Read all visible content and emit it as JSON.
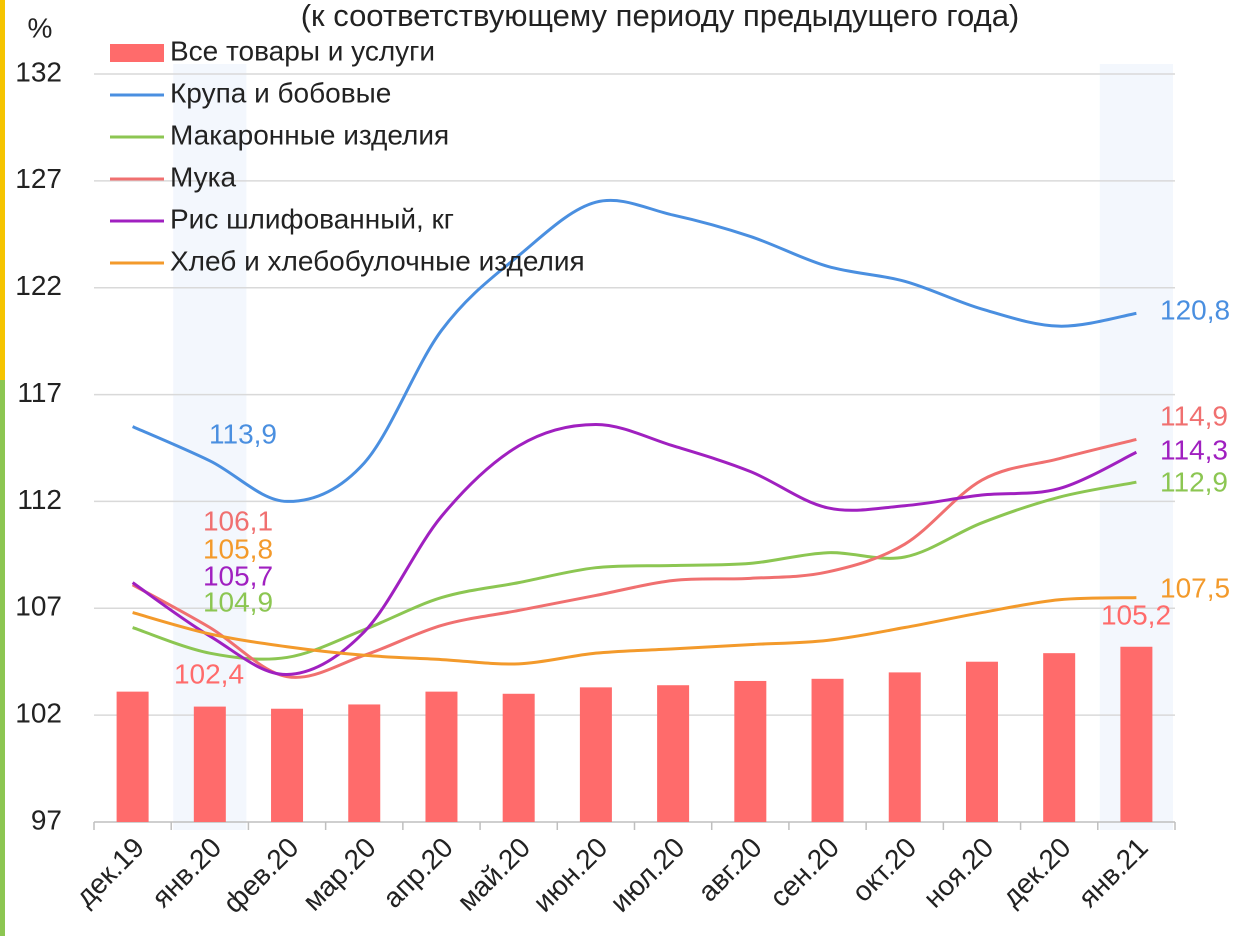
{
  "chart_data": {
    "type": "bar+line",
    "title": "(к соответствующему периоду предыдущего года)",
    "y_label": "%",
    "categories": [
      "дек.19",
      "янв.20",
      "фев.20",
      "мар.20",
      "апр.20",
      "май.20",
      "июн.20",
      "июл.20",
      "авг.20",
      "сен.20",
      "окт.20",
      "ноя.20",
      "дек.20",
      "янв.21"
    ],
    "ylim": [
      97,
      132
    ],
    "yticks": [
      97,
      102,
      107,
      112,
      117,
      122,
      127,
      132
    ],
    "grid": true,
    "legend": "top-left",
    "series": [
      {
        "name": "Все товары и услуги",
        "type": "bar",
        "color": "#ff6b6b",
        "values": [
          103.1,
          102.4,
          102.3,
          102.5,
          103.1,
          103.0,
          103.3,
          103.4,
          103.6,
          103.7,
          104.0,
          104.5,
          104.9,
          105.2
        ],
        "value_labels": [
          null,
          "102,4",
          null,
          null,
          null,
          null,
          null,
          null,
          null,
          null,
          null,
          null,
          null,
          "105,2"
        ]
      },
      {
        "name": "Крупа и бобовые",
        "type": "line",
        "color": "#4a8fe0",
        "values": [
          115.5,
          113.9,
          112.0,
          113.8,
          120.0,
          123.5,
          126.0,
          125.4,
          124.4,
          123.0,
          122.3,
          121.0,
          120.2,
          120.8
        ],
        "value_labels": [
          null,
          "113,9",
          null,
          null,
          null,
          null,
          null,
          null,
          null,
          null,
          null,
          null,
          null,
          "120,8"
        ]
      },
      {
        "name": "Макаронные изделия",
        "type": "line",
        "color": "#8cc652",
        "values": [
          106.1,
          104.9,
          104.7,
          106.0,
          107.5,
          108.2,
          108.9,
          109.0,
          109.1,
          109.6,
          109.4,
          111.0,
          112.2,
          112.9
        ],
        "value_labels": [
          null,
          "104,9",
          null,
          null,
          null,
          null,
          null,
          null,
          null,
          null,
          null,
          null,
          null,
          "112,9"
        ]
      },
      {
        "name": "Мука",
        "type": "line",
        "color": "#f07070",
        "values": [
          108.1,
          106.1,
          103.8,
          104.8,
          106.2,
          106.9,
          107.6,
          108.3,
          108.4,
          108.7,
          110.0,
          113.0,
          114.0,
          114.9
        ],
        "value_labels": [
          null,
          "106,1",
          null,
          null,
          null,
          null,
          null,
          null,
          null,
          null,
          null,
          null,
          null,
          "114,9"
        ]
      },
      {
        "name": "Рис шлифованный, кг",
        "type": "line",
        "color": "#a020c0",
        "values": [
          108.2,
          105.7,
          103.9,
          105.9,
          111.3,
          114.6,
          115.6,
          114.6,
          113.4,
          111.7,
          111.8,
          112.3,
          112.6,
          114.3
        ],
        "value_labels": [
          null,
          "105,7",
          null,
          null,
          null,
          null,
          null,
          null,
          null,
          null,
          null,
          null,
          null,
          "114,3"
        ]
      },
      {
        "name": "Хлеб и хлебобулочные изделия",
        "type": "line",
        "color": "#f39a2b",
        "values": [
          106.8,
          105.8,
          105.2,
          104.8,
          104.6,
          104.4,
          104.9,
          105.1,
          105.3,
          105.5,
          106.1,
          106.8,
          107.4,
          107.5
        ],
        "value_labels": [
          null,
          "105,8",
          null,
          null,
          null,
          null,
          null,
          null,
          null,
          null,
          null,
          null,
          null,
          "107,5"
        ]
      }
    ]
  }
}
